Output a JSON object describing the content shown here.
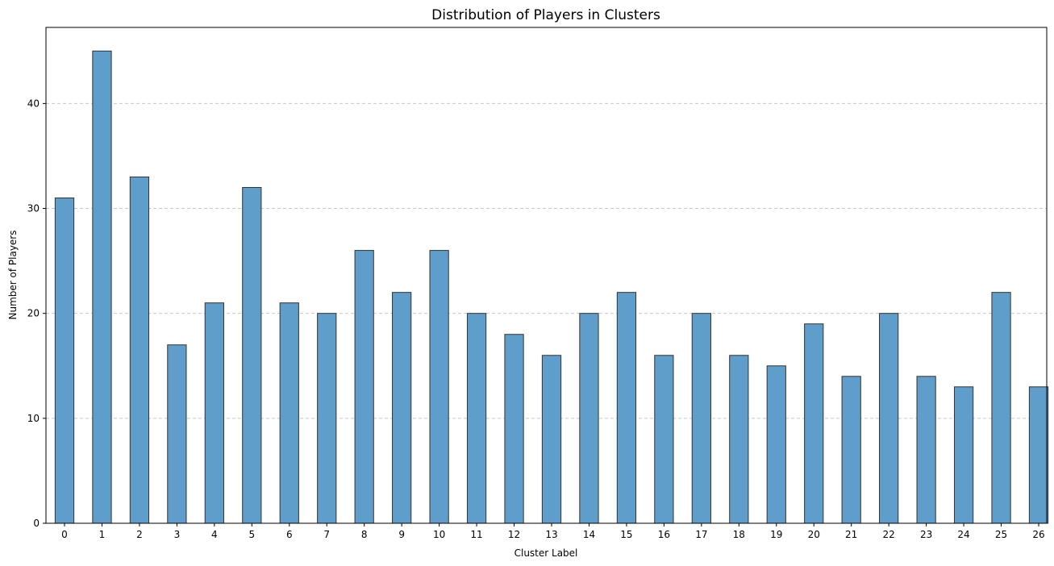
{
  "chart_data": {
    "type": "bar",
    "title": "Distribution of Players in Clusters",
    "xlabel": "Cluster Label",
    "ylabel": "Number of Players",
    "categories": [
      "0",
      "1",
      "2",
      "3",
      "4",
      "5",
      "6",
      "7",
      "8",
      "9",
      "10",
      "11",
      "12",
      "13",
      "14",
      "15",
      "16",
      "17",
      "18",
      "19",
      "20",
      "21",
      "22",
      "23",
      "24",
      "25",
      "26"
    ],
    "values": [
      31,
      45,
      33,
      17,
      21,
      32,
      21,
      20,
      26,
      22,
      26,
      20,
      18,
      16,
      20,
      22,
      16,
      20,
      16,
      15,
      19,
      14,
      20,
      14,
      13,
      22,
      13
    ],
    "ylim": [
      0,
      47.25
    ],
    "yticks": [
      0,
      10,
      20,
      30,
      40
    ],
    "grid": "y-dashed",
    "legend": "none",
    "colors": {
      "bar_fill": "#5f9dcb",
      "bar_edge": "#333333",
      "grid": "#c8c8c8"
    }
  }
}
